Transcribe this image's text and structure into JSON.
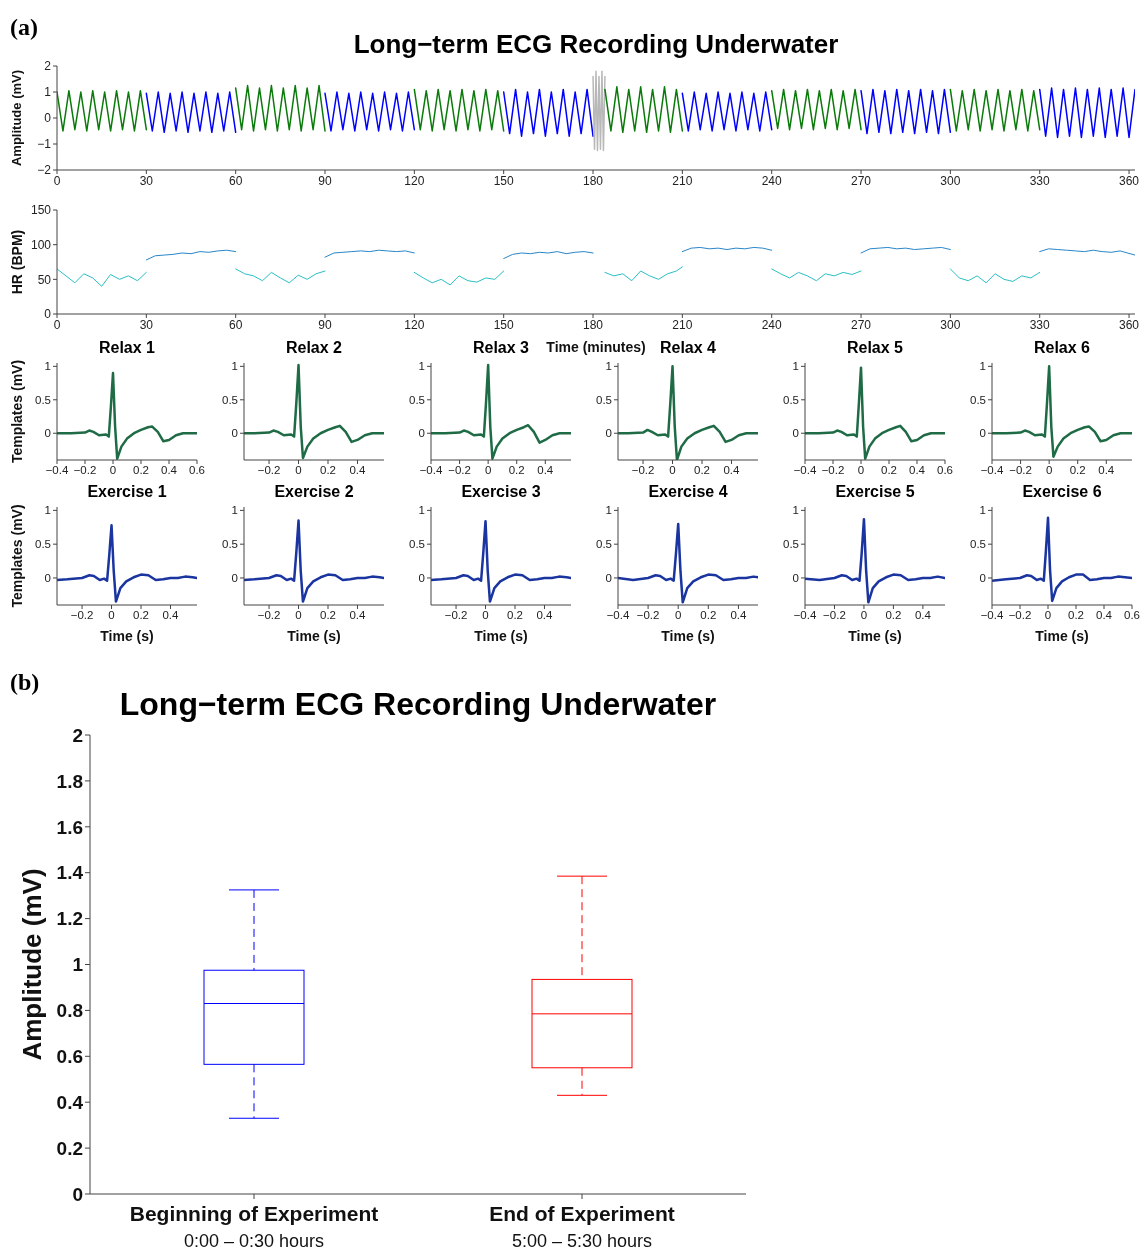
{
  "chart_data": [
    {
      "type": "line",
      "title": "Long−term ECG Recording Underwater",
      "ylabel": "Amplitude (mV)",
      "annotations": [
        "(a)"
      ],
      "xlim": [
        0,
        362
      ],
      "xticks": [
        0,
        30,
        60,
        90,
        120,
        150,
        180,
        210,
        240,
        270,
        300,
        330,
        360
      ],
      "ylim": [
        -2,
        2
      ],
      "yticks": [
        -2,
        -1,
        0,
        1,
        2
      ],
      "series": [
        {
          "color": "#0a7a0a",
          "x": [
            0,
            2,
            4,
            6,
            8,
            10,
            12,
            14,
            16,
            18,
            20,
            22,
            24,
            26,
            28,
            30
          ],
          "values": [
            1.0,
            -0.5,
            1.05,
            -0.45,
            1.0,
            -0.5,
            1.05,
            -0.45,
            1.0,
            -0.5,
            1.05,
            -0.45,
            1.0,
            -0.5,
            1.05,
            -0.45
          ]
        },
        {
          "color": "#0000ff",
          "x": [
            30,
            32,
            34,
            36,
            38,
            40,
            42,
            44,
            46,
            48,
            50,
            52,
            54,
            56,
            58,
            60
          ],
          "values": [
            0.95,
            -0.5,
            1.0,
            -0.55,
            0.95,
            -0.5,
            1.0,
            -0.55,
            0.95,
            -0.5,
            1.0,
            -0.55,
            0.95,
            -0.5,
            1.0,
            -0.55
          ]
        },
        {
          "color": "#0a7a0a",
          "x": [
            60,
            62,
            64,
            66,
            68,
            70,
            72,
            74,
            76,
            78,
            80,
            82,
            84,
            86,
            88,
            90
          ],
          "values": [
            1.15,
            -0.45,
            1.25,
            -0.5,
            1.15,
            -0.45,
            1.25,
            -0.5,
            1.15,
            -0.45,
            1.25,
            -0.5,
            1.15,
            -0.45,
            1.25,
            -0.5
          ]
        },
        {
          "color": "#0000ff",
          "x": [
            90,
            92,
            94,
            96,
            98,
            100,
            102,
            104,
            106,
            108,
            110,
            112,
            114,
            116,
            118,
            120
          ],
          "values": [
            0.95,
            -0.5,
            1.0,
            -0.45,
            0.95,
            -0.5,
            1.0,
            -0.45,
            0.95,
            -0.5,
            1.0,
            -0.45,
            0.95,
            -0.5,
            1.0,
            -0.45
          ]
        },
        {
          "color": "#0a7a0a",
          "x": [
            120,
            122,
            124,
            126,
            128,
            130,
            132,
            134,
            136,
            138,
            140,
            142,
            144,
            146,
            148,
            150
          ],
          "values": [
            1.1,
            -0.45,
            1.05,
            -0.5,
            1.1,
            -0.45,
            1.05,
            -0.5,
            1.1,
            -0.45,
            1.05,
            -0.5,
            1.1,
            -0.45,
            1.05,
            -0.5
          ]
        },
        {
          "color": "#0000ff",
          "x": [
            150,
            152,
            154,
            156,
            158,
            160,
            162,
            164,
            166,
            168,
            170,
            172,
            174,
            176,
            178,
            180
          ],
          "values": [
            1.0,
            -0.6,
            1.1,
            -0.7,
            1.0,
            -0.6,
            1.1,
            -0.7,
            1.0,
            -0.6,
            1.1,
            -0.7,
            1.0,
            -0.6,
            1.1,
            -0.7
          ]
        },
        {
          "color": "#b8b8b8",
          "x": [
            180,
            180.5,
            181,
            181.5,
            182,
            182.5,
            183,
            183.5,
            184
          ],
          "values": [
            1.6,
            -1.2,
            1.8,
            -1.25,
            1.6,
            -1.2,
            1.8,
            -1.25,
            1.6
          ]
        },
        {
          "color": "#0a7a0a",
          "x": [
            184,
            186,
            188,
            190,
            192,
            194,
            196,
            198,
            200,
            202,
            204,
            206,
            208,
            210
          ],
          "values": [
            1.1,
            -0.5,
            1.2,
            -0.55,
            1.1,
            -0.5,
            1.2,
            -0.55,
            1.1,
            -0.5,
            1.2,
            -0.55,
            1.1,
            -0.5
          ]
        },
        {
          "color": "#0000ff",
          "x": [
            210,
            212,
            214,
            216,
            218,
            220,
            222,
            224,
            226,
            228,
            230,
            232,
            234,
            236,
            238,
            240
          ],
          "values": [
            0.95,
            -0.5,
            1.0,
            -0.45,
            0.95,
            -0.5,
            1.0,
            -0.45,
            0.95,
            -0.5,
            1.0,
            -0.45,
            0.95,
            -0.5,
            1.0,
            -0.45
          ]
        },
        {
          "color": "#0a7a0a",
          "x": [
            240,
            242,
            244,
            246,
            248,
            250,
            252,
            254,
            256,
            258,
            260,
            262,
            264,
            266,
            268,
            270
          ],
          "values": [
            1.05,
            -0.4,
            1.1,
            -0.45,
            1.05,
            -0.4,
            1.1,
            -0.45,
            1.05,
            -0.4,
            1.1,
            -0.45,
            1.05,
            -0.4,
            1.1,
            -0.45
          ]
        },
        {
          "color": "#0000ff",
          "x": [
            270,
            272,
            274,
            276,
            278,
            280,
            282,
            284,
            286,
            288,
            290,
            292,
            294,
            296,
            298,
            300
          ],
          "values": [
            1.05,
            -0.6,
            1.1,
            -0.55,
            1.05,
            -0.6,
            1.1,
            -0.55,
            1.05,
            -0.6,
            1.1,
            -0.55,
            1.05,
            -0.6,
            1.1,
            -0.55
          ]
        },
        {
          "color": "#0a7a0a",
          "x": [
            300,
            302,
            304,
            306,
            308,
            310,
            312,
            314,
            316,
            318,
            320,
            322,
            324,
            326,
            328,
            330
          ],
          "values": [
            1.1,
            -0.5,
            1.05,
            -0.45,
            1.1,
            -0.5,
            1.05,
            -0.45,
            1.1,
            -0.5,
            1.05,
            -0.45,
            1.1,
            -0.5,
            1.05,
            -0.45
          ]
        },
        {
          "color": "#0000ff",
          "x": [
            330,
            332,
            334,
            336,
            338,
            340,
            342,
            344,
            346,
            348,
            350,
            352,
            354,
            356,
            358,
            360,
            362
          ],
          "values": [
            1.1,
            -0.7,
            1.15,
            -0.75,
            1.1,
            -0.7,
            1.15,
            -0.75,
            1.1,
            -0.7,
            1.15,
            -0.75,
            1.1,
            -0.7,
            1.15,
            -0.75,
            1.1
          ]
        }
      ]
    },
    {
      "type": "line",
      "ylabel": "HR (BPM)",
      "xlabel": "Time (minutes)",
      "xlim": [
        0,
        362
      ],
      "xticks": [
        0,
        30,
        60,
        90,
        120,
        150,
        180,
        210,
        240,
        270,
        300,
        330,
        360
      ],
      "ylim": [
        0,
        150
      ],
      "yticks": [
        0,
        50,
        100,
        150
      ],
      "series": [
        {
          "color": "#2bbfc4",
          "x": [
            0,
            3,
            6,
            9,
            12,
            15,
            18,
            21,
            24,
            27,
            30
          ],
          "values": [
            65,
            55,
            45,
            58,
            52,
            40,
            57,
            50,
            55,
            48,
            60
          ]
        },
        {
          "color": "#2a86c8",
          "x": [
            30,
            33,
            36,
            39,
            42,
            45,
            48,
            51,
            54,
            57,
            60
          ],
          "values": [
            78,
            84,
            85,
            86,
            88,
            87,
            90,
            89,
            91,
            92,
            90
          ]
        },
        {
          "color": "#2bbfc4",
          "x": [
            60,
            63,
            66,
            69,
            72,
            75,
            78,
            81,
            84,
            87,
            90
          ],
          "values": [
            65,
            58,
            55,
            48,
            60,
            52,
            45,
            56,
            50,
            58,
            62
          ]
        },
        {
          "color": "#2a86c8",
          "x": [
            90,
            93,
            96,
            99,
            102,
            105,
            108,
            111,
            114,
            117,
            120
          ],
          "values": [
            82,
            88,
            89,
            90,
            91,
            90,
            92,
            91,
            90,
            91,
            88
          ]
        },
        {
          "color": "#2bbfc4",
          "x": [
            120,
            123,
            126,
            129,
            132,
            135,
            138,
            141,
            144,
            147,
            150
          ],
          "values": [
            60,
            52,
            45,
            50,
            42,
            55,
            48,
            46,
            52,
            50,
            62
          ]
        },
        {
          "color": "#2a86c8",
          "x": [
            150,
            153,
            156,
            159,
            162,
            165,
            168,
            171,
            174,
            177,
            180
          ],
          "values": [
            80,
            86,
            88,
            87,
            89,
            88,
            90,
            87,
            89,
            90,
            88
          ]
        },
        {
          "color": "#2bbfc4",
          "x": [
            184,
            187,
            190,
            193,
            196,
            199,
            202,
            205,
            208,
            210
          ],
          "values": [
            60,
            55,
            58,
            48,
            62,
            55,
            50,
            58,
            62,
            68
          ]
        },
        {
          "color": "#2a86c8",
          "x": [
            210,
            213,
            216,
            219,
            222,
            225,
            228,
            231,
            234,
            237,
            240
          ],
          "values": [
            90,
            95,
            96,
            94,
            95,
            93,
            95,
            94,
            96,
            95,
            92
          ]
        },
        {
          "color": "#2bbfc4",
          "x": [
            240,
            243,
            246,
            249,
            252,
            255,
            258,
            261,
            264,
            267,
            270
          ],
          "values": [
            65,
            58,
            52,
            60,
            55,
            48,
            58,
            55,
            60,
            57,
            62
          ]
        },
        {
          "color": "#2a86c8",
          "x": [
            270,
            273,
            276,
            279,
            282,
            285,
            288,
            291,
            294,
            297,
            300
          ],
          "values": [
            88,
            94,
            95,
            96,
            94,
            95,
            93,
            94,
            95,
            96,
            93
          ]
        },
        {
          "color": "#2bbfc4",
          "x": [
            300,
            303,
            306,
            309,
            312,
            315,
            318,
            321,
            324,
            327,
            330
          ],
          "values": [
            65,
            52,
            48,
            55,
            45,
            58,
            50,
            47,
            55,
            52,
            60
          ]
        },
        {
          "color": "#2a86c8",
          "x": [
            330,
            333,
            336,
            339,
            342,
            345,
            348,
            351,
            354,
            357,
            362
          ],
          "values": [
            90,
            94,
            93,
            92,
            91,
            90,
            92,
            90,
            89,
            91,
            85
          ]
        }
      ]
    },
    {
      "type": "line",
      "title": "Relax 1",
      "ylabel": "Templates (mV)",
      "color": "#1e6b45",
      "xlim": [
        -0.4,
        0.6
      ],
      "xticks": [
        -0.4,
        -0.2,
        0,
        0.2,
        0.4,
        0.6
      ],
      "ylim": [
        -0.4,
        1.05
      ],
      "yticks": [
        0,
        0.5,
        1
      ],
      "x": [
        -0.4,
        -0.3,
        -0.2,
        -0.17,
        -0.14,
        -0.1,
        -0.05,
        -0.03,
        -0.015,
        0,
        0.015,
        0.03,
        0.06,
        0.1,
        0.15,
        0.2,
        0.25,
        0.28,
        0.32,
        0.36,
        0.4,
        0.45,
        0.5,
        0.55,
        0.6
      ],
      "values": [
        0,
        0,
        0.01,
        0.04,
        0.02,
        -0.03,
        -0.02,
        -0.05,
        0.4,
        0.9,
        0.1,
        -0.38,
        -0.2,
        -0.08,
        0,
        0.05,
        0.09,
        0.1,
        0.02,
        -0.12,
        -0.1,
        -0.03,
        0,
        0,
        0
      ]
    },
    {
      "type": "line",
      "title": "Relax 2",
      "color": "#1e6b45",
      "xlim": [
        -0.37,
        0.58
      ],
      "xticks": [
        -0.2,
        0,
        0.2,
        0.4
      ],
      "ylim": [
        -0.4,
        1.05
      ],
      "yticks": [
        0,
        0.5,
        1
      ],
      "x": [
        -0.37,
        -0.3,
        -0.2,
        -0.17,
        -0.14,
        -0.1,
        -0.05,
        -0.03,
        -0.015,
        0,
        0.015,
        0.03,
        0.06,
        0.1,
        0.15,
        0.2,
        0.25,
        0.28,
        0.32,
        0.36,
        0.4,
        0.45,
        0.5,
        0.55,
        0.58
      ],
      "values": [
        0,
        0,
        0.01,
        0.04,
        0.02,
        -0.03,
        -0.02,
        -0.05,
        0.45,
        1.02,
        0.1,
        -0.37,
        -0.2,
        -0.08,
        0,
        0.05,
        0.09,
        0.11,
        0.02,
        -0.13,
        -0.1,
        -0.03,
        0,
        0,
        0
      ]
    },
    {
      "type": "line",
      "title": "Relax 3",
      "color": "#1e6b45",
      "xlim": [
        -0.4,
        0.58
      ],
      "xticks": [
        -0.4,
        -0.2,
        0,
        0.2,
        0.4
      ],
      "ylim": [
        -0.4,
        1.05
      ],
      "yticks": [
        0,
        0.5,
        1
      ],
      "x": [
        -0.4,
        -0.3,
        -0.2,
        -0.17,
        -0.14,
        -0.1,
        -0.05,
        -0.03,
        -0.015,
        0,
        0.015,
        0.03,
        0.06,
        0.1,
        0.15,
        0.2,
        0.25,
        0.28,
        0.32,
        0.36,
        0.4,
        0.45,
        0.5,
        0.55,
        0.58
      ],
      "values": [
        0,
        0,
        0.01,
        0.04,
        0.02,
        -0.03,
        -0.02,
        -0.05,
        0.45,
        1.02,
        0.1,
        -0.38,
        -0.2,
        -0.08,
        0,
        0.05,
        0.09,
        0.12,
        0.02,
        -0.14,
        -0.1,
        -0.03,
        0,
        0,
        0
      ]
    },
    {
      "type": "line",
      "title": "Relax 4",
      "color": "#1e6b45",
      "xlim": [
        -0.37,
        0.58
      ],
      "xticks": [
        -0.2,
        0,
        0.2,
        0.4
      ],
      "ylim": [
        -0.4,
        1.05
      ],
      "yticks": [
        0,
        0.5,
        1
      ],
      "x": [
        -0.37,
        -0.3,
        -0.2,
        -0.17,
        -0.14,
        -0.1,
        -0.05,
        -0.03,
        -0.015,
        0,
        0.015,
        0.03,
        0.06,
        0.1,
        0.15,
        0.2,
        0.25,
        0.28,
        0.32,
        0.36,
        0.4,
        0.45,
        0.5,
        0.55,
        0.58
      ],
      "values": [
        0,
        0,
        0.01,
        0.05,
        0.02,
        -0.03,
        -0.02,
        -0.05,
        0.45,
        1.0,
        0.1,
        -0.4,
        -0.2,
        -0.08,
        0,
        0.05,
        0.09,
        0.11,
        0.02,
        -0.13,
        -0.1,
        -0.03,
        0,
        0,
        0
      ]
    },
    {
      "type": "line",
      "title": "Relax 5",
      "color": "#1e6b45",
      "xlim": [
        -0.4,
        0.6
      ],
      "xticks": [
        -0.4,
        -0.2,
        0,
        0.2,
        0.4,
        0.6
      ],
      "ylim": [
        -0.4,
        1.05
      ],
      "yticks": [
        0,
        0.5,
        1
      ],
      "x": [
        -0.4,
        -0.3,
        -0.2,
        -0.17,
        -0.14,
        -0.1,
        -0.05,
        -0.03,
        -0.015,
        0,
        0.015,
        0.03,
        0.06,
        0.1,
        0.15,
        0.2,
        0.25,
        0.28,
        0.32,
        0.36,
        0.4,
        0.45,
        0.5,
        0.55,
        0.6
      ],
      "values": [
        0,
        0,
        0.01,
        0.04,
        0.02,
        -0.03,
        -0.02,
        -0.05,
        0.45,
        0.98,
        0.1,
        -0.38,
        -0.2,
        -0.08,
        0,
        0.05,
        0.09,
        0.11,
        0.02,
        -0.12,
        -0.1,
        -0.03,
        0,
        0,
        0
      ]
    },
    {
      "type": "line",
      "title": "Relax 6",
      "color": "#1e6b45",
      "xlim": [
        -0.4,
        0.58
      ],
      "xticks": [
        -0.4,
        -0.2,
        0,
        0.2,
        0.4
      ],
      "ylim": [
        -0.4,
        1.05
      ],
      "yticks": [
        0,
        0.5,
        1
      ],
      "x": [
        -0.4,
        -0.3,
        -0.2,
        -0.17,
        -0.14,
        -0.1,
        -0.05,
        -0.03,
        -0.015,
        0,
        0.015,
        0.03,
        0.06,
        0.1,
        0.15,
        0.2,
        0.25,
        0.28,
        0.32,
        0.36,
        0.4,
        0.45,
        0.5,
        0.55,
        0.58
      ],
      "values": [
        0,
        0,
        0.01,
        0.04,
        0.02,
        -0.03,
        -0.02,
        -0.05,
        0.45,
        1.0,
        0.1,
        -0.35,
        -0.2,
        -0.08,
        0,
        0.05,
        0.09,
        0.1,
        0.02,
        -0.12,
        -0.1,
        -0.03,
        0,
        0,
        0
      ]
    },
    {
      "type": "line",
      "title": "Exercise 1",
      "ylabel": "Templates (mV)",
      "xlabel": "Time (s)",
      "color": "#1a34a0",
      "xlim": [
        -0.37,
        0.58
      ],
      "xticks": [
        -0.2,
        0,
        0.2,
        0.4
      ],
      "ylim": [
        -0.4,
        1.05
      ],
      "yticks": [
        0,
        0.5,
        1
      ],
      "x": [
        -0.37,
        -0.3,
        -0.2,
        -0.15,
        -0.12,
        -0.08,
        -0.05,
        -0.03,
        -0.015,
        0,
        0.015,
        0.03,
        0.06,
        0.1,
        0.15,
        0.2,
        0.25,
        0.3,
        0.35,
        0.4,
        0.45,
        0.5,
        0.55,
        0.58
      ],
      "values": [
        -0.03,
        -0.02,
        0,
        0.04,
        0.03,
        -0.03,
        -0.01,
        -0.04,
        0.35,
        0.78,
        0.1,
        -0.35,
        -0.15,
        -0.05,
        0.01,
        0.05,
        0.04,
        -0.03,
        -0.02,
        0,
        0,
        0.02,
        0.01,
        0
      ]
    },
    {
      "type": "line",
      "title": "Exercise 2",
      "xlabel": "Time (s)",
      "color": "#1a34a0",
      "xlim": [
        -0.37,
        0.58
      ],
      "xticks": [
        -0.2,
        0,
        0.2,
        0.4
      ],
      "ylim": [
        -0.4,
        1.05
      ],
      "yticks": [
        0,
        0.5,
        1
      ],
      "x": [
        -0.37,
        -0.3,
        -0.2,
        -0.15,
        -0.12,
        -0.08,
        -0.05,
        -0.03,
        -0.015,
        0,
        0.015,
        0.03,
        0.06,
        0.1,
        0.15,
        0.2,
        0.25,
        0.3,
        0.35,
        0.4,
        0.45,
        0.5,
        0.55,
        0.58
      ],
      "values": [
        -0.03,
        -0.02,
        0,
        0.04,
        0.03,
        -0.03,
        -0.01,
        -0.04,
        0.38,
        0.85,
        0.1,
        -0.35,
        -0.15,
        -0.05,
        0.01,
        0.05,
        0.04,
        -0.03,
        -0.02,
        0,
        0,
        0.02,
        0.01,
        0
      ]
    },
    {
      "type": "line",
      "title": "Exercise 3",
      "xlabel": "Time (s)",
      "color": "#1a34a0",
      "xlim": [
        -0.37,
        0.58
      ],
      "xticks": [
        -0.2,
        0,
        0.2,
        0.4
      ],
      "ylim": [
        -0.4,
        1.05
      ],
      "yticks": [
        0,
        0.5,
        1
      ],
      "x": [
        -0.37,
        -0.3,
        -0.2,
        -0.15,
        -0.12,
        -0.08,
        -0.05,
        -0.03,
        -0.015,
        0,
        0.015,
        0.03,
        0.06,
        0.1,
        0.15,
        0.2,
        0.25,
        0.3,
        0.35,
        0.4,
        0.45,
        0.5,
        0.55,
        0.58
      ],
      "values": [
        -0.03,
        -0.02,
        0,
        0.04,
        0.03,
        -0.03,
        -0.01,
        -0.04,
        0.38,
        0.84,
        0.1,
        -0.35,
        -0.15,
        -0.05,
        0.01,
        0.05,
        0.04,
        -0.03,
        -0.02,
        0,
        0,
        0.02,
        0.01,
        0
      ]
    },
    {
      "type": "line",
      "title": "Exercise 4",
      "xlabel": "Time (s)",
      "color": "#1a34a0",
      "xlim": [
        -0.4,
        0.53
      ],
      "xticks": [
        -0.4,
        -0.2,
        0,
        0.2,
        0.4
      ],
      "ylim": [
        -0.4,
        1.05
      ],
      "yticks": [
        0,
        0.5,
        1
      ],
      "x": [
        -0.4,
        -0.3,
        -0.2,
        -0.15,
        -0.12,
        -0.08,
        -0.05,
        -0.03,
        -0.015,
        0,
        0.015,
        0.03,
        0.06,
        0.1,
        0.15,
        0.2,
        0.25,
        0.3,
        0.35,
        0.4,
        0.45,
        0.5,
        0.53
      ],
      "values": [
        0,
        -0.03,
        0,
        0.04,
        0.03,
        -0.03,
        -0.01,
        -0.04,
        0.36,
        0.8,
        0.1,
        -0.36,
        -0.15,
        -0.05,
        0.01,
        0.05,
        0.04,
        -0.03,
        -0.02,
        0,
        0,
        0.02,
        0.01
      ]
    },
    {
      "type": "line",
      "title": "Exercise 5",
      "xlabel": "Time (s)",
      "color": "#1a34a0",
      "xlim": [
        -0.4,
        0.55
      ],
      "xticks": [
        -0.4,
        -0.2,
        0,
        0.2,
        0.4
      ],
      "ylim": [
        -0.4,
        1.05
      ],
      "yticks": [
        0,
        0.5,
        1
      ],
      "x": [
        -0.4,
        -0.3,
        -0.2,
        -0.15,
        -0.12,
        -0.08,
        -0.05,
        -0.03,
        -0.015,
        0,
        0.015,
        0.03,
        0.06,
        0.1,
        0.15,
        0.2,
        0.25,
        0.3,
        0.35,
        0.4,
        0.45,
        0.5,
        0.55
      ],
      "values": [
        -0.01,
        -0.03,
        0,
        0.04,
        0.03,
        -0.03,
        -0.01,
        -0.04,
        0.38,
        0.87,
        0.1,
        -0.36,
        -0.15,
        -0.05,
        0.01,
        0.05,
        0.04,
        -0.03,
        -0.02,
        0,
        0,
        0.02,
        0
      ]
    },
    {
      "type": "line",
      "title": "Exercise 6",
      "xlabel": "Time (s)",
      "color": "#1a34a0",
      "xlim": [
        -0.4,
        0.6
      ],
      "xticks": [
        -0.4,
        -0.2,
        0,
        0.2,
        0.4,
        0.6
      ],
      "ylim": [
        -0.4,
        1.05
      ],
      "yticks": [
        0,
        0.5,
        1
      ],
      "x": [
        -0.4,
        -0.3,
        -0.2,
        -0.15,
        -0.12,
        -0.08,
        -0.05,
        -0.03,
        -0.015,
        0,
        0.015,
        0.03,
        0.06,
        0.1,
        0.15,
        0.2,
        0.25,
        0.3,
        0.35,
        0.4,
        0.45,
        0.5,
        0.55,
        0.6
      ],
      "values": [
        -0.04,
        -0.02,
        0,
        0.04,
        0.03,
        -0.03,
        -0.01,
        -0.04,
        0.4,
        0.89,
        0.1,
        -0.34,
        -0.15,
        -0.05,
        0.01,
        0.05,
        0.05,
        -0.03,
        -0.02,
        0,
        0,
        0.02,
        0.01,
        0
      ]
    },
    {
      "type": "box",
      "title": "Long−term ECG Recording Underwater",
      "ylabel": "Amplitude (mV)",
      "annotations": [
        "(b)"
      ],
      "categories": [
        "Beginning of Experiment\n0:00 – 0:30 hours",
        "End of Experiment\n5:00 – 5:30 hours"
      ],
      "colors": [
        "#0000ff",
        "#ff0000"
      ],
      "ylim": [
        0,
        2
      ],
      "yticks": [
        0,
        0.2,
        0.4,
        0.6,
        0.8,
        1,
        1.2,
        1.4,
        1.6,
        1.8,
        2
      ],
      "boxes": [
        {
          "low": 0.33,
          "q1": 0.565,
          "median": 0.83,
          "q3": 0.975,
          "high": 1.325
        },
        {
          "low": 0.43,
          "q1": 0.55,
          "median": 0.785,
          "q3": 0.935,
          "high": 1.385
        }
      ]
    }
  ]
}
